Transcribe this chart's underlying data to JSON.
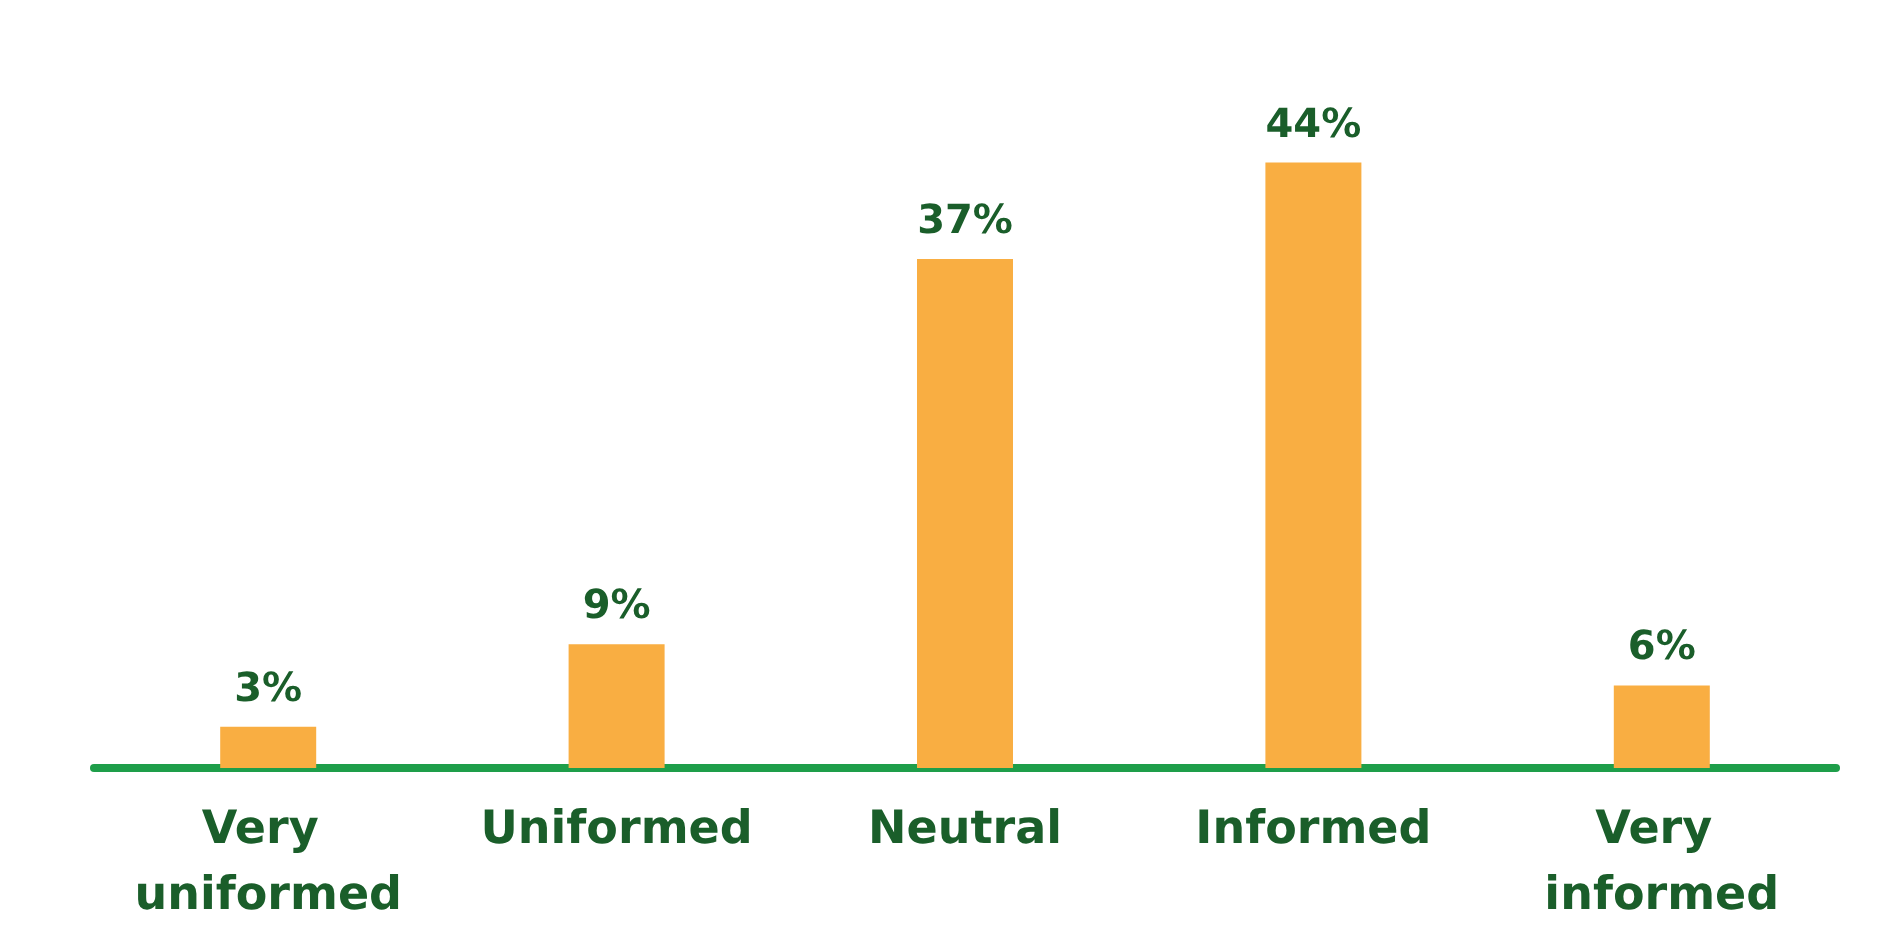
{
  "chart_data": {
    "type": "bar",
    "categories": [
      "Very uniformed",
      "Uniformed",
      "Neutral",
      "Informed",
      "Very informed"
    ],
    "values": [
      3,
      9,
      37,
      44,
      6
    ],
    "value_labels": [
      "3%",
      "9%",
      "37%",
      "44%",
      "6%"
    ],
    "color": "#f9ae42"
  }
}
